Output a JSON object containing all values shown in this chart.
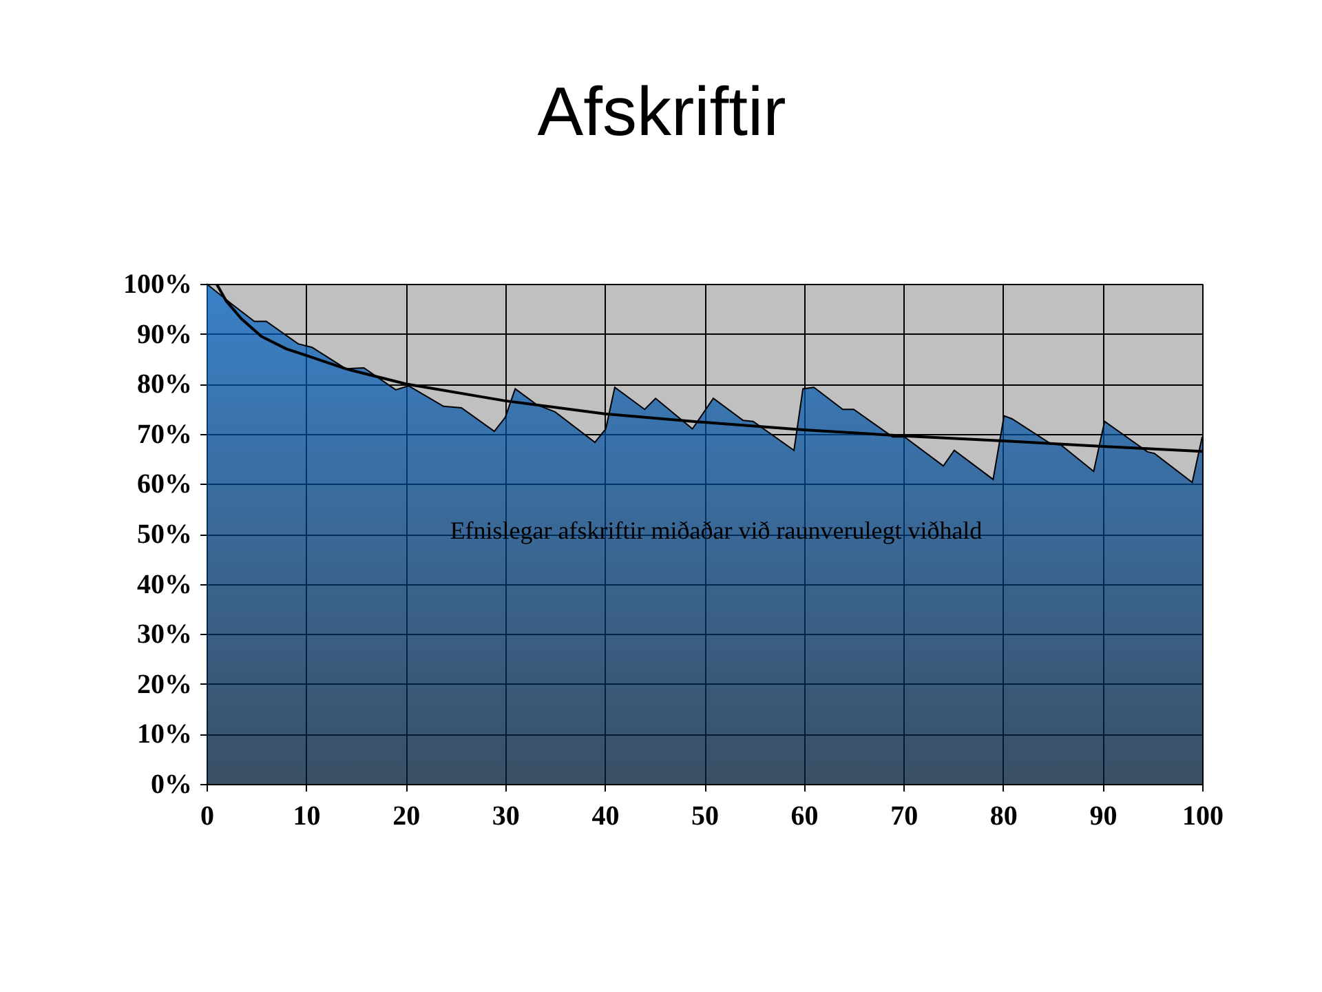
{
  "chart_data": {
    "type": "area",
    "title": "Afskriftir",
    "annotations": [
      "Efnislegar afskriftir miðaðar við raunverulegt viðhald"
    ],
    "series": [
      {
        "color": "#0066cc",
        "x": [
          0,
          2.5,
          4.8,
          6,
          9.2,
          10.6,
          14,
          15.8,
          19,
          20.3,
          23.8,
          25.6,
          28.9,
          30,
          31,
          33.2,
          35,
          39,
          40.1,
          41,
          44,
          45.1,
          48.8,
          50.9,
          53.9,
          54.9,
          59,
          59.9,
          61,
          63.9,
          65,
          68.9,
          70.1,
          74,
          75.1,
          79,
          80.1,
          80.9,
          84.8,
          85.8,
          89.1,
          90.2,
          94.5,
          95.2,
          99,
          100
        ],
        "values": [
          100,
          96,
          92.5,
          92.5,
          88,
          87.3,
          83,
          83.2,
          78.8,
          79.6,
          75.5,
          75.2,
          70.5,
          73.3,
          79,
          75.8,
          74.4,
          68.3,
          71,
          79.3,
          74.9,
          77.1,
          71,
          77.1,
          72.7,
          72.5,
          66.7,
          79,
          79.3,
          74.9,
          74.9,
          69.4,
          69.4,
          63.6,
          66.7,
          60.9,
          73.6,
          73,
          68,
          67.8,
          62.5,
          72.5,
          66.4,
          66.1,
          60.3,
          69.4
        ]
      },
      {
        "type": "line",
        "color": "#000000",
        "x": [
          1,
          2,
          3.5,
          5.5,
          8,
          10,
          14,
          20,
          30,
          40,
          50,
          60,
          70,
          80,
          90,
          100
        ],
        "values": [
          100,
          96.5,
          93,
          89.5,
          87,
          85.7,
          83,
          80,
          76.6,
          74,
          72.3,
          70.8,
          69.6,
          68.6,
          67.5,
          66.5
        ]
      }
    ],
    "xlim": [
      0,
      100
    ],
    "xticks": [
      0,
      10,
      20,
      30,
      40,
      50,
      60,
      70,
      80,
      90,
      100
    ],
    "ylim": [
      0,
      100
    ],
    "yticks": [
      {
        "value": 0,
        "label": "0%"
      },
      {
        "value": 10,
        "label": "10%"
      },
      {
        "value": 20,
        "label": "20%"
      },
      {
        "value": 30,
        "label": "30%"
      },
      {
        "value": 40,
        "label": "40%"
      },
      {
        "value": 50,
        "label": "50%"
      },
      {
        "value": 60,
        "label": "60%"
      },
      {
        "value": 70,
        "label": "70%"
      },
      {
        "value": 80,
        "label": "80%"
      },
      {
        "value": 90,
        "label": "90%"
      },
      {
        "value": 100,
        "label": "100%"
      }
    ],
    "grid": true
  }
}
